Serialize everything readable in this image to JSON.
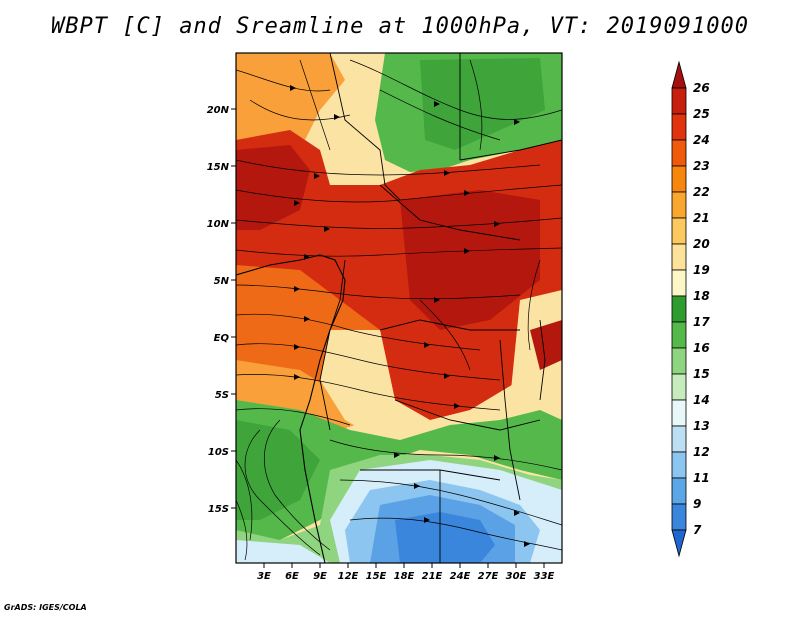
{
  "title": "WBPT [C] and Sreamline at 1000hPa, VT: 2019091000",
  "footer": "GrADS: IGES/COLA",
  "lat_ticks": [
    "20N",
    "15N",
    "10N",
    "5N",
    "EQ",
    "5S",
    "10S",
    "15S"
  ],
  "lon_ticks": [
    "3E",
    "6E",
    "9E",
    "12E",
    "15E",
    "18E",
    "21E",
    "24E",
    "27E",
    "30E",
    "33E"
  ],
  "colorbar_labels": [
    "26",
    "25",
    "24",
    "23",
    "22",
    "21",
    "20",
    "19",
    "18",
    "17",
    "16",
    "15",
    "14",
    "13",
    "12",
    "11",
    "9",
    "7"
  ],
  "colorbar_colors": [
    "#a50f0f",
    "#c81e0e",
    "#e0330e",
    "#f05a0c",
    "#f7860c",
    "#f9a72e",
    "#fbc960",
    "#fde39a",
    "#fdf7c8",
    "#2e9c2e",
    "#55b84a",
    "#8fd47f",
    "#c6ecbd",
    "#e8f7f8",
    "#bcdff4",
    "#8cc5ef",
    "#5aa6e6",
    "#3a86dc",
    "#1f66cf"
  ],
  "palette": {
    "dark_red": "#b3170e",
    "red": "#d42c10",
    "orange": "#ee6a16",
    "light_orange": "#f9a03a",
    "tan": "#fbe3a4",
    "green": "#3fa43a",
    "light_green": "#8fd47f",
    "pale_blue": "#d6eefa",
    "blue": "#5ba1e6",
    "deep_blue": "#3a86dc"
  }
}
